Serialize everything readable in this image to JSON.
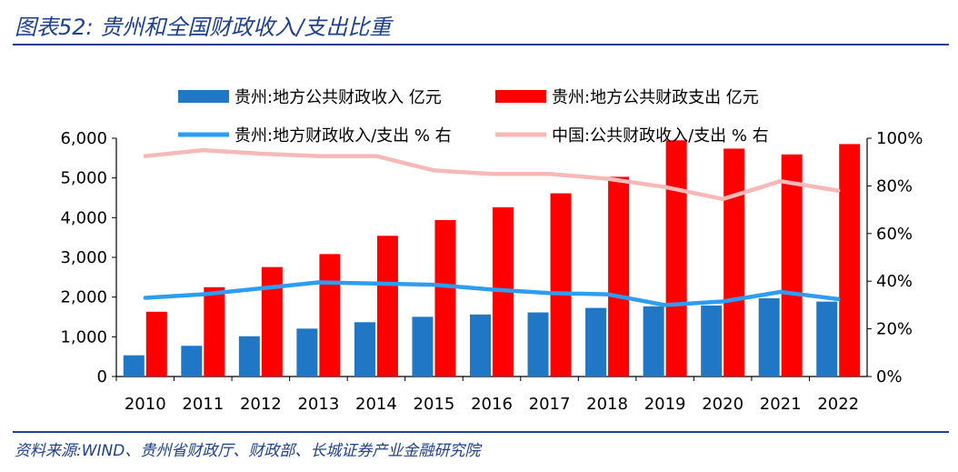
{
  "header": {
    "title": "图表52:  贵州和全国财政收入/支出比重"
  },
  "footer": {
    "source": "资料来源:WIND、贵州省财政厅、财政部、长城证券产业金融研究院"
  },
  "colors": {
    "title": "#1f3f8f",
    "guizhou_revenue": "#1f77c6",
    "guizhou_expenditure": "#ff0000",
    "guizhou_ratio": "#2e9df0",
    "china_ratio": "#f7b8b8"
  },
  "chart_data": {
    "type": "bar",
    "categories": [
      "2010",
      "2011",
      "2012",
      "2013",
      "2014",
      "2015",
      "2016",
      "2017",
      "2018",
      "2019",
      "2020",
      "2021",
      "2022"
    ],
    "left_axis": {
      "range": [
        0,
        6000
      ],
      "ticks": [
        "0",
        "1,000",
        "2,000",
        "3,000",
        "4,000",
        "5,000",
        "6,000"
      ]
    },
    "right_axis": {
      "range": [
        0,
        100
      ],
      "ticks": [
        "0%",
        "20%",
        "40%",
        "60%",
        "80%",
        "100%"
      ]
    },
    "series": [
      {
        "name": "贵州:地方公共财政收入 亿元",
        "type": "bar",
        "axis": "left",
        "values": [
          534,
          773,
          1014,
          1206,
          1367,
          1503,
          1561,
          1614,
          1727,
          1767,
          1787,
          1970,
          1886
        ]
      },
      {
        "name": "贵州:地方公共财政支出 亿元",
        "type": "bar",
        "axis": "left",
        "values": [
          1631,
          2249,
          2756,
          3083,
          3543,
          3939,
          4262,
          4613,
          5029,
          5948,
          5739,
          5592,
          5853
        ]
      },
      {
        "name": "贵州:地方财政收入/支出 % 右",
        "type": "line",
        "axis": "right",
        "values": [
          33,
          34.5,
          37,
          39.5,
          39,
          38.5,
          36.5,
          35,
          34.5,
          30,
          31.5,
          35.5,
          32.5
        ]
      },
      {
        "name": "中国:公共财政收入/支出 % 右",
        "type": "line",
        "axis": "right",
        "values": [
          92.5,
          95,
          93.5,
          92.5,
          92.5,
          86.5,
          85,
          85,
          83,
          79.5,
          74.5,
          82,
          78
        ]
      }
    ]
  }
}
